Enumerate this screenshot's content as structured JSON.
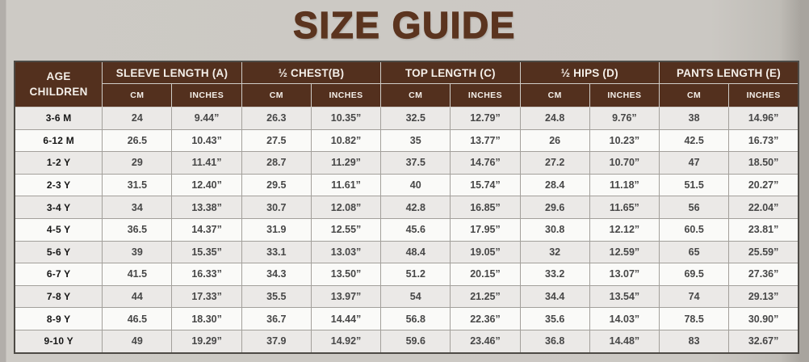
{
  "title": "SIZE GUIDE",
  "colors": {
    "header_brown": "#53301e",
    "title_brown": "#5b341f",
    "page_background": "#cbc8c3",
    "row_odd": "#ebe9e7",
    "row_even": "#fafaf8",
    "grid_line": "#a3a09b"
  },
  "table": {
    "age_header_line1": "AGE",
    "age_header_line2": "CHILDREN",
    "groups": [
      {
        "label": "SLEEVE LENGTH (A)"
      },
      {
        "label": "½ CHEST(B)"
      },
      {
        "label": "TOP LENGTH (C)"
      },
      {
        "label": "½ HIPS (D)"
      },
      {
        "label": "PANTS LENGTH (E)"
      }
    ],
    "unit_headers": {
      "cm": "CM",
      "inches": "INCHES"
    },
    "rows": [
      {
        "age": "3-6 M",
        "values": [
          "24",
          "9.44”",
          "26.3",
          "10.35”",
          "32.5",
          "12.79”",
          "24.8",
          "9.76”",
          "38",
          "14.96”"
        ]
      },
      {
        "age": "6-12 M",
        "values": [
          "26.5",
          "10.43”",
          "27.5",
          "10.82”",
          "35",
          "13.77”",
          "26",
          "10.23”",
          "42.5",
          "16.73”"
        ]
      },
      {
        "age": "1-2 Y",
        "values": [
          "29",
          "11.41”",
          "28.7",
          "11.29”",
          "37.5",
          "14.76”",
          "27.2",
          "10.70”",
          "47",
          "18.50”"
        ]
      },
      {
        "age": "2-3 Y",
        "values": [
          "31.5",
          "12.40”",
          "29.5",
          "11.61”",
          "40",
          "15.74”",
          "28.4",
          "11.18”",
          "51.5",
          "20.27”"
        ]
      },
      {
        "age": "3-4 Y",
        "values": [
          "34",
          "13.38”",
          "30.7",
          "12.08”",
          "42.8",
          "16.85”",
          "29.6",
          "11.65”",
          "56",
          "22.04”"
        ]
      },
      {
        "age": "4-5 Y",
        "values": [
          "36.5",
          "14.37”",
          "31.9",
          "12.55”",
          "45.6",
          "17.95”",
          "30.8",
          "12.12”",
          "60.5",
          "23.81”"
        ]
      },
      {
        "age": "5-6 Y",
        "values": [
          "39",
          "15.35”",
          "33.1",
          "13.03”",
          "48.4",
          "19.05”",
          "32",
          "12.59”",
          "65",
          "25.59”"
        ]
      },
      {
        "age": "6-7 Y",
        "values": [
          "41.5",
          "16.33”",
          "34.3",
          "13.50”",
          "51.2",
          "20.15”",
          "33.2",
          "13.07”",
          "69.5",
          "27.36”"
        ]
      },
      {
        "age": "7-8 Y",
        "values": [
          "44",
          "17.33”",
          "35.5",
          "13.97”",
          "54",
          "21.25”",
          "34.4",
          "13.54”",
          "74",
          "29.13”"
        ]
      },
      {
        "age": "8-9 Y",
        "values": [
          "46.5",
          "18.30”",
          "36.7",
          "14.44”",
          "56.8",
          "22.36”",
          "35.6",
          "14.03”",
          "78.5",
          "30.90”"
        ]
      },
      {
        "age": "9-10 Y",
        "values": [
          "49",
          "19.29”",
          "37.9",
          "14.92”",
          "59.6",
          "23.46”",
          "36.8",
          "14.48”",
          "83",
          "32.67”"
        ]
      }
    ]
  }
}
